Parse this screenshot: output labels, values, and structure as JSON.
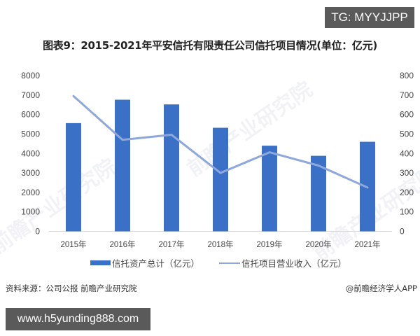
{
  "badges": {
    "tg": "TG: MYYJJPP",
    "url": "www.h5yunding888.com"
  },
  "header": {
    "title": "图表9：2015-2021年平安信托有限责任公司信托项目情况(单位：亿元)"
  },
  "footer": {
    "source": "资料来源：公司公报 前瞻产业研究院",
    "credit": "@前瞻经济学人APP"
  },
  "watermark": "前瞻产业研究院",
  "legend": {
    "bar_label": "信托资产总计（亿元）",
    "line_label": "信托项目营业收入（亿元）"
  },
  "colors": {
    "bar": "#3a70c6",
    "line": "#8ea7dc",
    "badge_bg": "#5a5a5a"
  },
  "chart_data": {
    "type": "bar+line",
    "title": "图表9：2015-2021年平安信托有限责任公司信托项目情况(单位：亿元)",
    "categories": [
      "2015年",
      "2016年",
      "2017年",
      "2018年",
      "2019年",
      "2020年",
      "2021年"
    ],
    "series": [
      {
        "name": "信托资产总计（亿元）",
        "type": "bar",
        "axis": "left",
        "values": [
          5560,
          6760,
          6520,
          5320,
          4400,
          3880,
          4600
        ]
      },
      {
        "name": "信托项目营业收入（亿元）",
        "type": "line",
        "axis": "right",
        "values": [
          695,
          470,
          496,
          300,
          406,
          338,
          225
        ]
      }
    ],
    "left_axis": {
      "ylim": [
        0,
        8000
      ],
      "ticks": [
        "0",
        "1000",
        "2000",
        "3000",
        "4000",
        "5000",
        "6000",
        "7000",
        "8000"
      ]
    },
    "right_axis": {
      "ylim": [
        0,
        800
      ],
      "ticks": [
        "0",
        "100",
        "200",
        "300",
        "400",
        "500",
        "600",
        "700",
        "800"
      ]
    },
    "xlabel": "",
    "ylabel": "",
    "grid": false,
    "legend_position": "bottom"
  }
}
